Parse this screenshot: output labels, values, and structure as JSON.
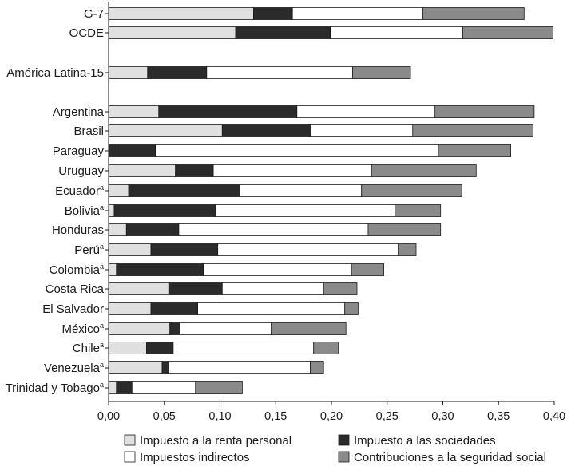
{
  "chart_data": {
    "type": "bar",
    "orientation": "horizontal",
    "stacked": true,
    "title": "",
    "xlabel": "",
    "ylabel": "",
    "xlim": [
      0,
      0.4
    ],
    "xticks": [
      "0,00",
      "0,05",
      "0,10",
      "0,15",
      "0,20",
      "0,25",
      "0,30",
      "0,35",
      "0,40"
    ],
    "grid": false,
    "legend_position": "bottom",
    "colors": {
      "Impuesto a la renta personal": "#e0e0e0",
      "Impuesto a las sociedades": "#2b2b2b",
      "Impuestos indirectos": "#ffffff",
      "Contribuciones a la seguridad social": "#8a8a8a"
    },
    "categories": [
      {
        "label": "G-7",
        "sup": ""
      },
      {
        "label": "OCDE",
        "sup": ""
      },
      {
        "label": "América Latina-15",
        "sup": ""
      },
      {
        "label": "Argentina",
        "sup": ""
      },
      {
        "label": "Brasil",
        "sup": ""
      },
      {
        "label": "Paraguay",
        "sup": ""
      },
      {
        "label": "Uruguay",
        "sup": ""
      },
      {
        "label": "Ecuador",
        "sup": "a"
      },
      {
        "label": "Bolivia",
        "sup": "a"
      },
      {
        "label": "Honduras",
        "sup": ""
      },
      {
        "label": "Perú",
        "sup": "a"
      },
      {
        "label": "Colombia",
        "sup": "a"
      },
      {
        "label": "Costa Rica",
        "sup": ""
      },
      {
        "label": "El Salvador",
        "sup": ""
      },
      {
        "label": "México",
        "sup": "a"
      },
      {
        "label": "Chile",
        "sup": "a"
      },
      {
        "label": "Venezuela",
        "sup": "a"
      },
      {
        "label": "Trinidad y Tobago",
        "sup": "a"
      }
    ],
    "series": [
      {
        "name": "Impuesto a la renta personal",
        "values": [
          0.13,
          0.114,
          0.035,
          0.045,
          0.102,
          0.0,
          0.06,
          0.018,
          0.005,
          0.016,
          0.038,
          0.007,
          0.054,
          0.038,
          0.055,
          0.034,
          0.048,
          0.007
        ]
      },
      {
        "name": "Impuesto a las sociedades",
        "values": [
          0.035,
          0.085,
          0.053,
          0.124,
          0.079,
          0.042,
          0.034,
          0.1,
          0.091,
          0.047,
          0.06,
          0.078,
          0.048,
          0.042,
          0.009,
          0.024,
          0.006,
          0.014
        ]
      },
      {
        "name": "Impuestos indirectos",
        "values": [
          0.117,
          0.119,
          0.131,
          0.124,
          0.092,
          0.254,
          0.142,
          0.109,
          0.161,
          0.17,
          0.162,
          0.133,
          0.091,
          0.132,
          0.082,
          0.126,
          0.127,
          0.057
        ]
      },
      {
        "name": "Contribuciones a la seguridad social",
        "values": [
          0.091,
          0.081,
          0.052,
          0.089,
          0.108,
          0.065,
          0.094,
          0.09,
          0.041,
          0.065,
          0.016,
          0.029,
          0.03,
          0.012,
          0.067,
          0.022,
          0.012,
          0.042
        ]
      }
    ]
  }
}
